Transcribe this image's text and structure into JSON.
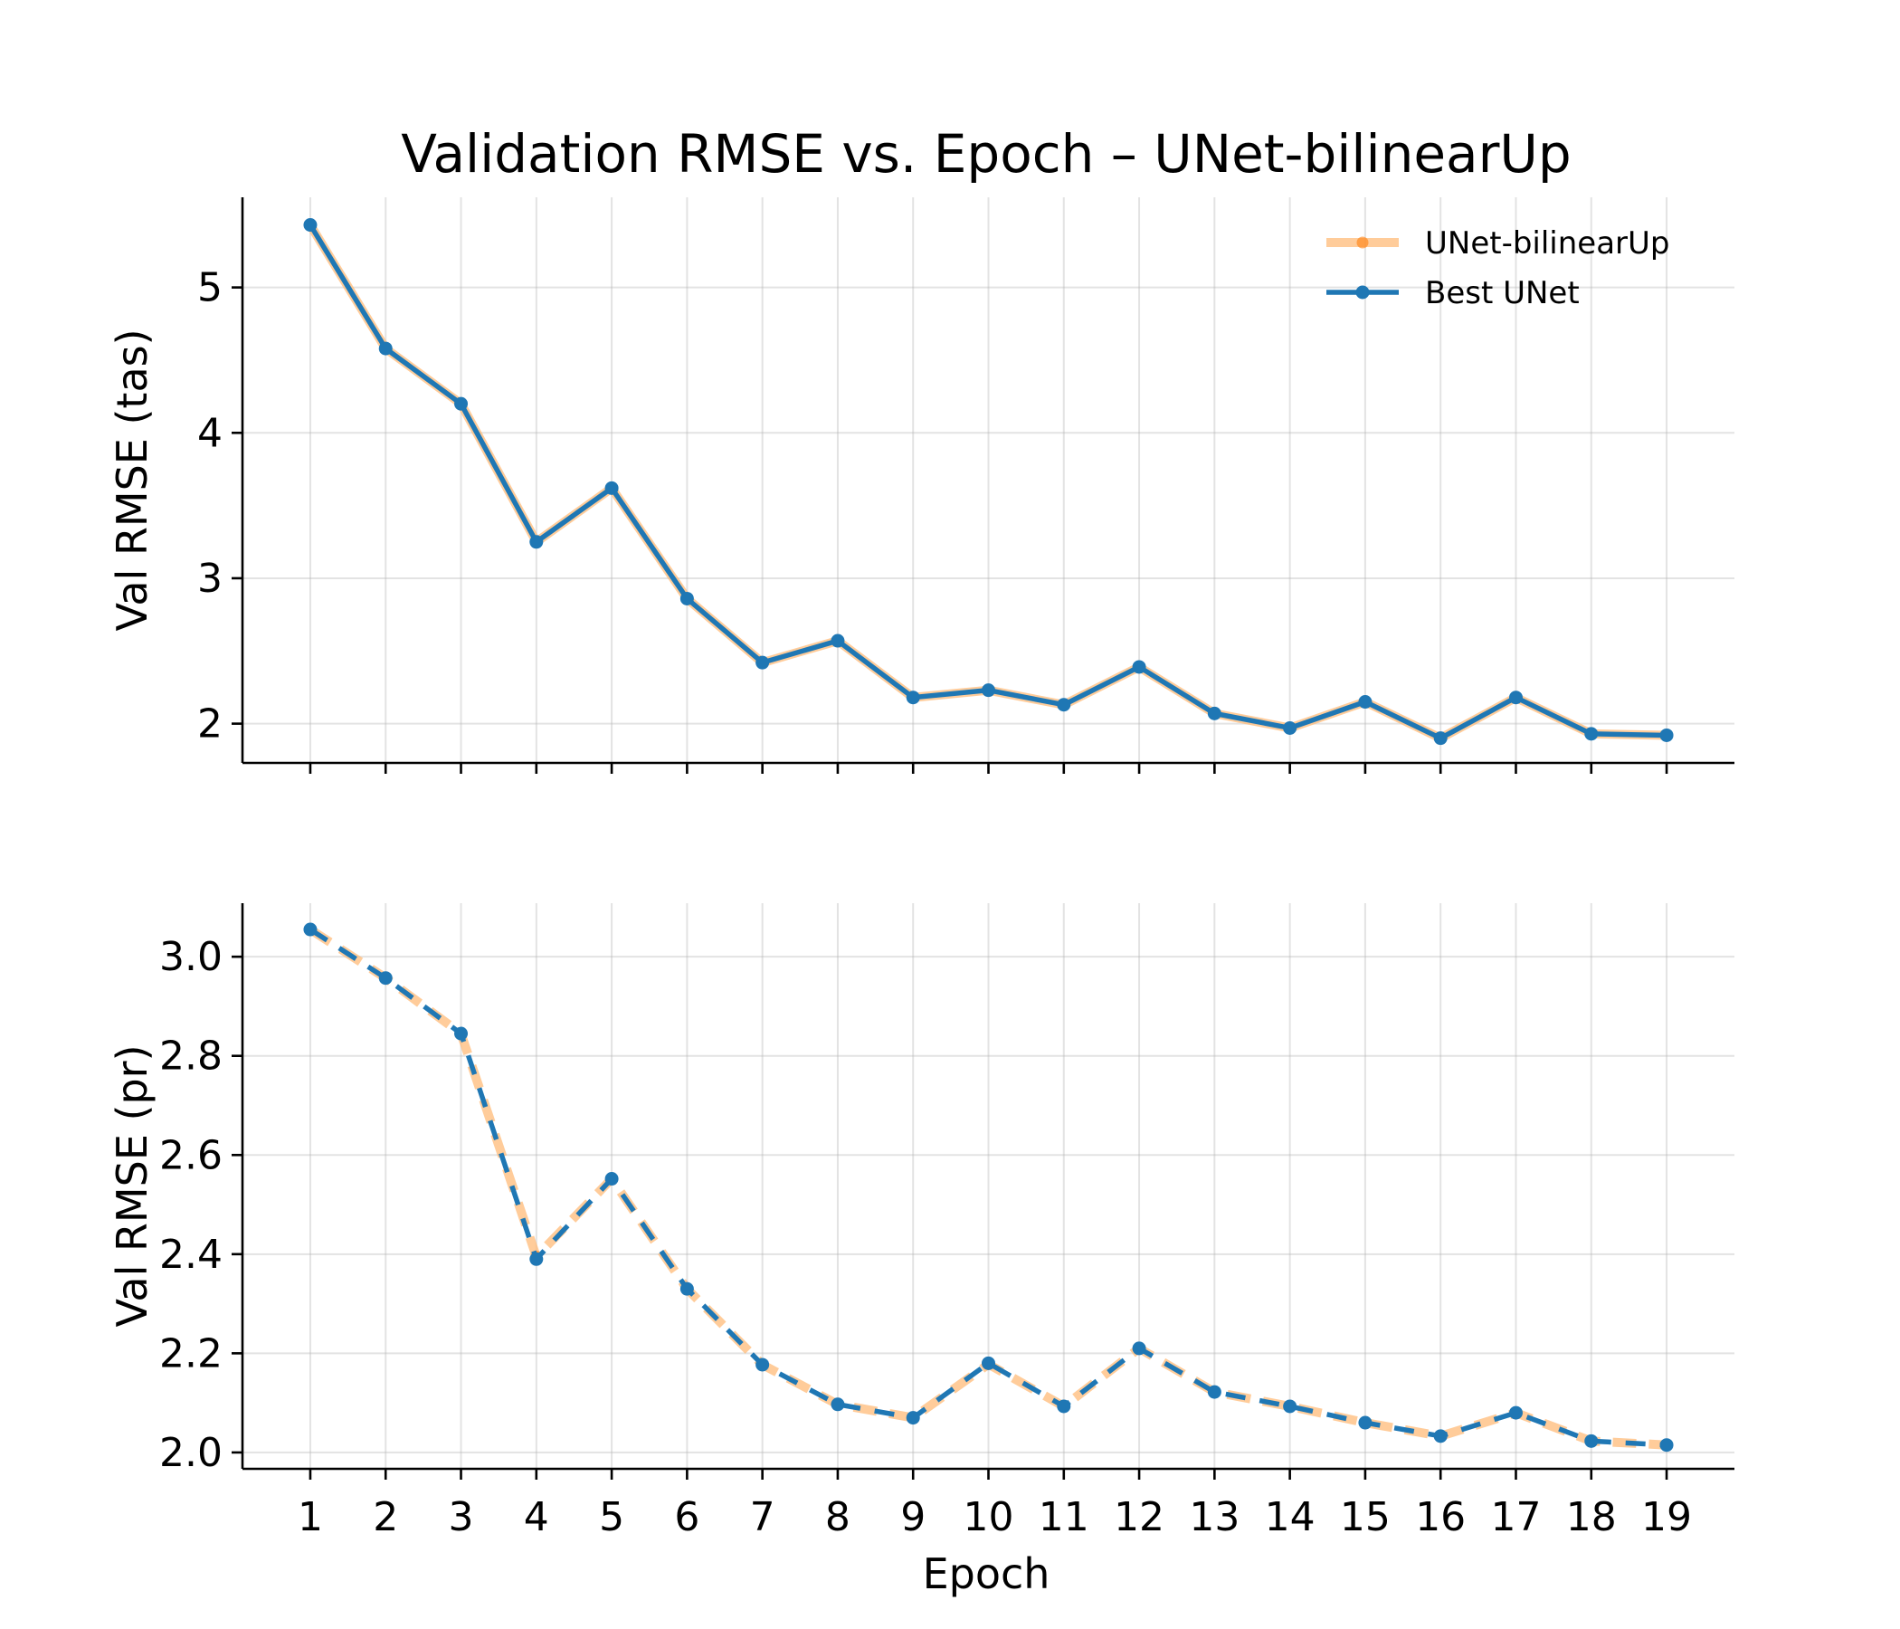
{
  "chart_data": {
    "type": "line",
    "title": "Validation RMSE vs. Epoch  –  UNet-bilinearUp",
    "xlabel": "Epoch",
    "x": [
      1,
      2,
      3,
      4,
      5,
      6,
      7,
      8,
      9,
      10,
      11,
      12,
      13,
      14,
      15,
      16,
      17,
      18,
      19
    ],
    "colors": {
      "model": "#ffbb78",
      "best": "#1f77b4"
    },
    "legend": {
      "placement": "top-right",
      "subplot": 0
    },
    "subplots": [
      {
        "ylabel": "Val RMSE (tas)",
        "ylim": [
          1.73,
          5.62
        ],
        "yticks": [
          2,
          3,
          4,
          5
        ],
        "ytick_labels": [
          "2",
          "3",
          "4",
          "5"
        ],
        "grid": true,
        "series": [
          {
            "name": "UNet-bilinearUp",
            "style": "solid",
            "values": [
              5.43,
              4.58,
              4.2,
              3.25,
              3.62,
              2.86,
              2.42,
              2.57,
              2.18,
              2.23,
              2.13,
              2.39,
              2.07,
              1.97,
              2.15,
              1.9,
              2.18,
              1.93,
              1.92
            ]
          },
          {
            "name": "Best UNet",
            "style": "solid",
            "values": [
              5.43,
              4.58,
              4.2,
              3.25,
              3.62,
              2.86,
              2.42,
              2.57,
              2.18,
              2.23,
              2.13,
              2.39,
              2.07,
              1.97,
              2.15,
              1.9,
              2.18,
              1.93,
              1.92
            ]
          }
        ]
      },
      {
        "ylabel": "Val RMSE (pr)",
        "ylim": [
          1.967,
          3.108
        ],
        "yticks": [
          2.0,
          2.2,
          2.4,
          2.6,
          2.8,
          3.0
        ],
        "ytick_labels": [
          "2.0",
          "2.2",
          "2.4",
          "2.6",
          "2.8",
          "3.0"
        ],
        "grid": true,
        "series": [
          {
            "name": "UNet-bilinearUp",
            "style": "dashed",
            "values": [
              3.055,
              2.957,
              2.845,
              2.395,
              2.552,
              2.33,
              2.177,
              2.097,
              2.07,
              2.178,
              2.093,
              2.21,
              2.122,
              2.093,
              2.06,
              2.033,
              2.08,
              2.023,
              2.015
            ]
          },
          {
            "name": "Best UNet",
            "style": "dashed",
            "values": [
              3.055,
              2.957,
              2.845,
              2.39,
              2.552,
              2.33,
              2.177,
              2.097,
              2.07,
              2.18,
              2.093,
              2.21,
              2.122,
              2.093,
              2.06,
              2.033,
              2.08,
              2.023,
              2.015
            ]
          }
        ]
      }
    ]
  }
}
